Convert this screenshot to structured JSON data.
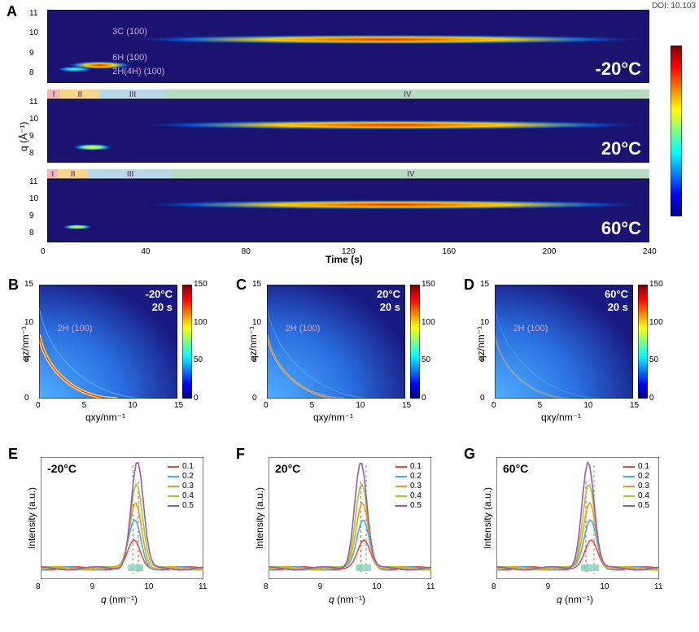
{
  "doi": "DOI: 10.103",
  "colormap_jet": [
    "#00007f",
    "#0000ff",
    "#007fff",
    "#00ffff",
    "#7fff7f",
    "#ffff00",
    "#ff7f00",
    "#ff0000",
    "#7f0000"
  ],
  "panelA": {
    "label": "A",
    "ylabel": "q (Å⁻¹)",
    "xlabel": "Time (s)",
    "xlim": [
      0,
      240
    ],
    "xticks": [
      0,
      40,
      80,
      120,
      160,
      200,
      240
    ],
    "yticks": [
      8,
      9,
      10,
      11
    ],
    "ylim": [
      7.5,
      11.2
    ],
    "rows": [
      {
        "temp": "-20°C",
        "annotations": [
          {
            "text": "3C (100)",
            "x": 26,
            "y": 10.0
          },
          {
            "text": "6H (100)",
            "x": 26,
            "y": 8.7
          },
          {
            "text": "2H(4H) (100)",
            "x": 26,
            "y": 8.0
          }
        ],
        "phase_bar": null,
        "streaks": [
          {
            "q": 8.4,
            "t0": 8,
            "t1": 34,
            "intensity": 0.95,
            "thick": 5
          },
          {
            "q": 9.7,
            "t0": 30,
            "t1": 240,
            "intensity": 1.0,
            "thick": 6
          },
          {
            "q": 8.2,
            "t0": 4,
            "t1": 18,
            "intensity": 0.4,
            "thick": 3
          }
        ]
      },
      {
        "temp": "20°C",
        "annotations": [],
        "phase_bar": [
          {
            "label": "I",
            "w": 0.022,
            "color": "#f4b6b6"
          },
          {
            "label": "II",
            "w": 0.065,
            "color": "#f7d58a"
          },
          {
            "label": "III",
            "w": 0.11,
            "color": "#b9d7e8"
          },
          {
            "label": "IV",
            "w": 0.803,
            "color": "#b8dcc2"
          }
        ],
        "streaks": [
          {
            "q": 8.4,
            "t0": 10,
            "t1": 26,
            "intensity": 0.7,
            "thick": 4
          },
          {
            "q": 9.7,
            "t0": 35,
            "t1": 240,
            "intensity": 1.0,
            "thick": 6
          }
        ]
      },
      {
        "temp": "60°C",
        "annotations": [],
        "phase_bar": [
          {
            "label": "I",
            "w": 0.018,
            "color": "#f4b6b6"
          },
          {
            "label": "II",
            "w": 0.05,
            "color": "#f7d58a"
          },
          {
            "label": "III",
            "w": 0.14,
            "color": "#b9d7e8"
          },
          {
            "label": "IV",
            "w": 0.792,
            "color": "#b8dcc2"
          }
        ],
        "streaks": [
          {
            "q": 8.4,
            "t0": 6,
            "t1": 18,
            "intensity": 0.55,
            "thick": 3
          },
          {
            "q": 9.7,
            "t0": 36,
            "t1": 240,
            "intensity": 1.0,
            "thick": 6
          }
        ]
      }
    ]
  },
  "panelsBCD": [
    {
      "label": "B",
      "temp": "-20°C",
      "time": "20 s",
      "anno": "2H (100)",
      "arc_intensity": 1.0
    },
    {
      "label": "C",
      "temp": "20°C",
      "time": "20 s",
      "anno": "2H (100)",
      "arc_intensity": 0.6
    },
    {
      "label": "D",
      "temp": "60°C",
      "time": "20 s",
      "anno": "2H (100)",
      "arc_intensity": 0.35
    }
  ],
  "bcd_axes": {
    "xlabel": "qxy/nm⁻¹",
    "ylabel": "qz/nm⁻¹",
    "lim": [
      0,
      15
    ],
    "ticks": [
      0,
      5,
      10,
      15
    ],
    "cbar_ticks": [
      0,
      50,
      100,
      150
    ]
  },
  "panelsEFG": [
    {
      "label": "E",
      "temp": "-20°C",
      "peak_q": 9.75,
      "arrow_dir": "right",
      "dash_q0": 9.7,
      "dash_q1": 9.8
    },
    {
      "label": "F",
      "temp": "20°C",
      "peak_q": 9.73,
      "arrow_dir": "left",
      "dash_q0": 9.8,
      "dash_q1": 9.7
    },
    {
      "label": "G",
      "temp": "60°C",
      "peak_q": 9.72,
      "arrow_dir": "left",
      "dash_q0": 9.8,
      "dash_q1": 9.65
    }
  ],
  "efg_axes": {
    "xlabel": "q (nm⁻¹)",
    "ylabel": "Intensity (a.u.)",
    "xlim": [
      8,
      11
    ],
    "xticks": [
      8,
      9,
      10,
      11
    ],
    "series": [
      {
        "label": "0.1",
        "color": "#e74c3c",
        "height": 0.25
      },
      {
        "label": "0.2",
        "color": "#3cb4e7",
        "height": 0.45
      },
      {
        "label": "0.3",
        "color": "#f39c12",
        "height": 0.62
      },
      {
        "label": "0.4",
        "color": "#9acd32",
        "height": 0.8
      },
      {
        "label": "0.5",
        "color": "#9b59b6",
        "height": 1.0
      }
    ]
  }
}
